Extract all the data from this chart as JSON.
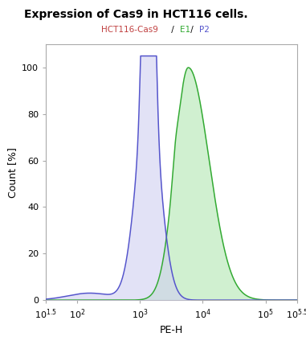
{
  "title": "Expression of Cas9 in HCT116 cells.",
  "xlabel": "PE-H",
  "ylabel": "Count [%]",
  "ylim": [
    0,
    110
  ],
  "xlim": [
    1.5,
    5.5
  ],
  "legend_parts": [
    "HCT116-Cas9",
    " / ",
    "E1",
    " / ",
    "P2"
  ],
  "legend_colors": [
    "#c04040",
    null,
    "#33aa33",
    null,
    "#5555cc"
  ],
  "blue_color": "#5555cc",
  "blue_fill": "#d0d0f0",
  "green_color": "#33aa33",
  "green_fill": "#d0f0d0",
  "yticks": [
    0,
    20,
    40,
    60,
    80,
    100
  ],
  "xtick_positions": [
    1.5,
    2,
    3,
    4,
    5,
    5.5
  ],
  "xtick_labels": [
    "10^{1.5}",
    "10^{2}",
    "10^{3}",
    "10^{4}",
    "10^{5}",
    "10^{5.5}"
  ],
  "spine_color": "#aaaaaa",
  "title_fontsize": 10,
  "axis_fontsize": 9,
  "tick_fontsize": 8
}
